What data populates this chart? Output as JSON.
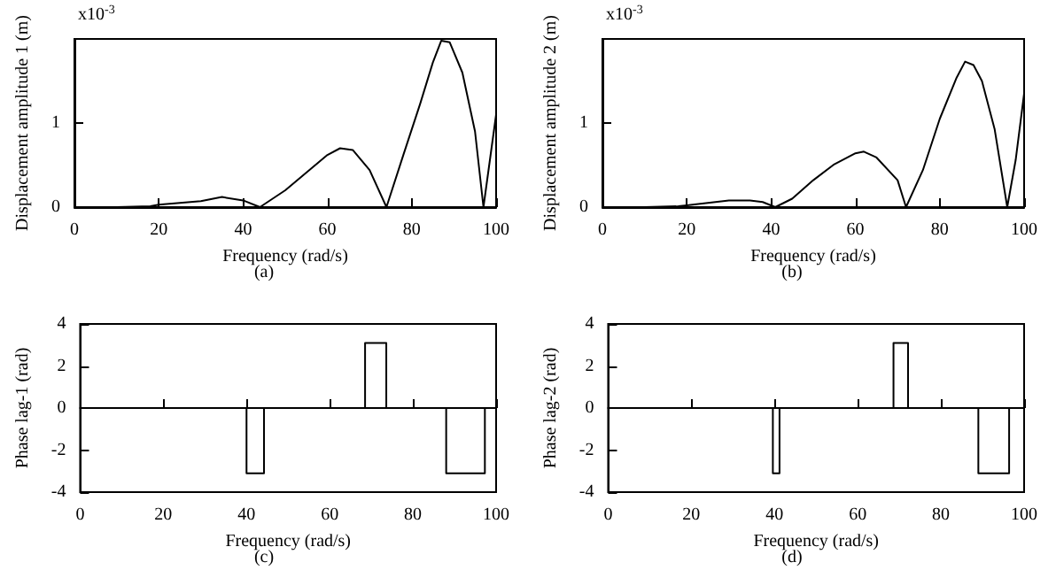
{
  "chart_data": [
    {
      "type": "line",
      "xlabel": "Frequency (rad/s)",
      "ylabel": "Displacement amplitude 1 (m)",
      "annotations": [
        "x10$^{-3}$",
        "(a)"
      ],
      "color": "#000000",
      "marker": "none",
      "x": [
        0,
        10,
        18,
        20,
        25,
        30,
        35,
        40,
        44,
        50,
        55,
        60,
        63,
        66,
        70,
        74,
        78,
        82,
        85,
        87,
        89,
        92,
        95,
        97,
        100
      ],
      "values": [
        0,
        0,
        0.01,
        0.03,
        0.05,
        0.07,
        0.12,
        0.08,
        0,
        0.2,
        0.41,
        0.62,
        0.7,
        0.68,
        0.44,
        0,
        0.62,
        1.23,
        1.72,
        1.98,
        1.96,
        1.6,
        0.9,
        0,
        1.1
      ],
      "xlim": [
        0,
        100
      ],
      "xticks": [
        0,
        20,
        40,
        60,
        80,
        100
      ],
      "ylim": [
        0,
        2
      ],
      "yticks": [
        0,
        1
      ]
    },
    {
      "type": "line",
      "xlabel": "Frequency (rad/s)",
      "ylabel": "Displacement amplitude 2 (m)",
      "annotations": [
        "x10$^{-3}$",
        "(b)"
      ],
      "color": "#000000",
      "marker": "none",
      "x": [
        0,
        10,
        18,
        20,
        25,
        30,
        35,
        38,
        41,
        45,
        50,
        55,
        60,
        62,
        65,
        70,
        72,
        76,
        80,
        84,
        86,
        88,
        90,
        93,
        96,
        98,
        100
      ],
      "values": [
        0,
        0,
        0.01,
        0.02,
        0.05,
        0.08,
        0.08,
        0.06,
        0,
        0.1,
        0.32,
        0.51,
        0.64,
        0.66,
        0.59,
        0.32,
        0,
        0.44,
        1.05,
        1.54,
        1.73,
        1.69,
        1.5,
        0.93,
        0,
        0.56,
        1.35
      ],
      "xlim": [
        0,
        100
      ],
      "xticks": [
        0,
        20,
        40,
        60,
        80,
        100
      ],
      "ylim": [
        0,
        2
      ],
      "yticks": [
        0,
        1
      ]
    },
    {
      "type": "line",
      "xlabel": "Frequency (rad/s)",
      "ylabel": "Phase lag-1 (rad)",
      "annotations": [
        "(c)"
      ],
      "color": "#000000",
      "marker": "none",
      "x": [
        0,
        40,
        40,
        44.2,
        44.2,
        68.5,
        68.5,
        73.6,
        73.6,
        88,
        88,
        97.3,
        97.3,
        100
      ],
      "values": [
        0,
        0,
        -3.1,
        -3.1,
        0,
        0,
        3.1,
        3.1,
        0,
        0,
        -3.1,
        -3.1,
        0,
        0
      ],
      "xlim": [
        0,
        100
      ],
      "xticks": [
        0,
        20,
        40,
        60,
        80,
        100
      ],
      "ylim": [
        -4,
        4
      ],
      "yticks": [
        -4,
        -2,
        0,
        2,
        4
      ]
    },
    {
      "type": "line",
      "xlabel": "Frequency (rad/s)",
      "ylabel": "Phase lag-2 (rad)",
      "annotations": [
        "(d)"
      ],
      "color": "#000000",
      "marker": "none",
      "x": [
        0,
        39.6,
        39.6,
        41.2,
        41.2,
        68.6,
        68.6,
        72.1,
        72.1,
        89,
        89,
        96.4,
        96.4,
        100
      ],
      "values": [
        0,
        0,
        -3.1,
        -3.1,
        0,
        0,
        3.1,
        3.1,
        0,
        0,
        -3.1,
        -3.1,
        0,
        0
      ],
      "xlim": [
        0,
        100
      ],
      "xticks": [
        0,
        20,
        40,
        60,
        80,
        100
      ],
      "ylim": [
        -4,
        4
      ],
      "yticks": [
        -4,
        -2,
        0,
        2,
        4
      ]
    }
  ]
}
